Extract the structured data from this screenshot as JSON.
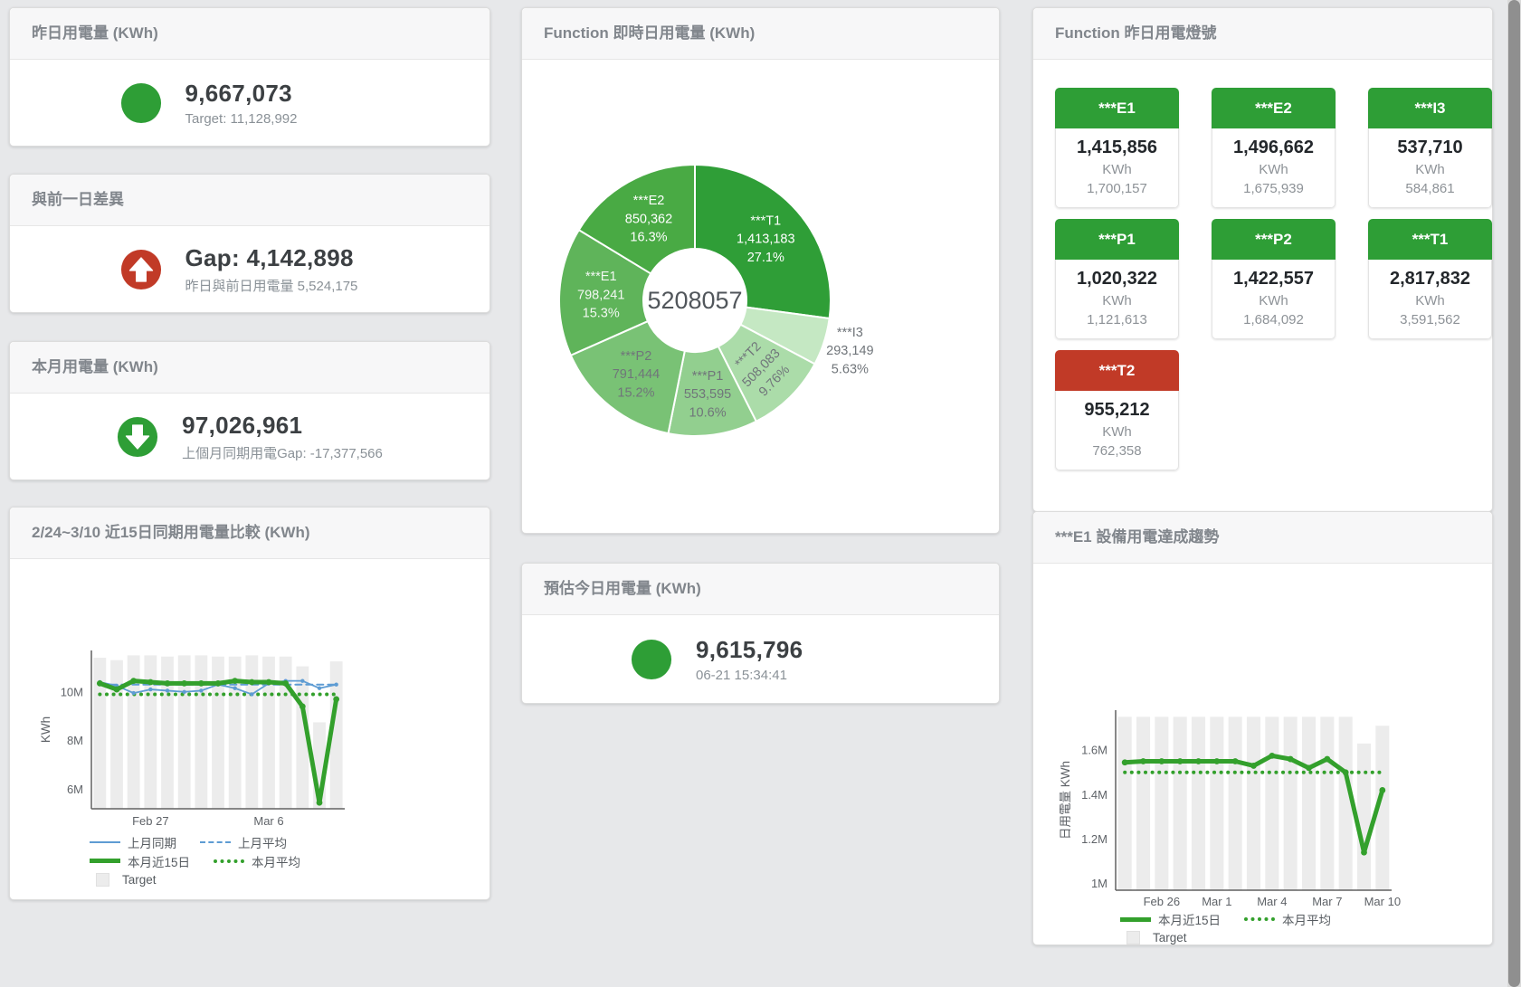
{
  "colors": {
    "green": "#2e9e36",
    "red": "#c13a27",
    "blue_line": "#5e9cd3",
    "green_line": "#33a02c",
    "target_bar": "#ececec"
  },
  "cards": {
    "yesterday": {
      "title": "昨日用電量 (KWh)",
      "value": "9,667,073",
      "subtitle": "Target: 11,128,992",
      "indicator": {
        "shape": "circle",
        "color": "#2e9e36"
      }
    },
    "prev_day_gap": {
      "title": "與前一日差異",
      "value": "Gap: 4,142,898",
      "subtitle": "昨日與前日用電量 5,524,175",
      "indicator": {
        "shape": "arrow-up",
        "color": "#c13a27"
      }
    },
    "month": {
      "title": "本月用電量 (KWh)",
      "value": "97,026,961",
      "subtitle": "上個月同期用電Gap: -17,377,566",
      "indicator": {
        "shape": "arrow-down",
        "color": "#2e9e36"
      }
    },
    "estimate": {
      "title": "預估今日用電量 (KWh)",
      "value": "9,615,796",
      "subtitle": "06-21 15:34:41",
      "indicator": {
        "shape": "circle",
        "color": "#2e9e36"
      }
    },
    "lights": {
      "title": "Function 昨日用電燈號",
      "tiles": [
        {
          "label": "***E1",
          "value": "1,415,856",
          "unit": "KWh",
          "target": "1,700,157",
          "color": "#2e9e36"
        },
        {
          "label": "***E2",
          "value": "1,496,662",
          "unit": "KWh",
          "target": "1,675,939",
          "color": "#2e9e36"
        },
        {
          "label": "***I3",
          "value": "537,710",
          "unit": "KWh",
          "target": "584,861",
          "color": "#2e9e36"
        },
        {
          "label": "***P1",
          "value": "1,020,322",
          "unit": "KWh",
          "target": "1,121,613",
          "color": "#2e9e36"
        },
        {
          "label": "***P2",
          "value": "1,422,557",
          "unit": "KWh",
          "target": "1,684,092",
          "color": "#2e9e36"
        },
        {
          "label": "***T1",
          "value": "2,817,832",
          "unit": "KWh",
          "target": "3,591,562",
          "color": "#2e9e36"
        },
        {
          "label": "***T2",
          "value": "955,212",
          "unit": "KWh",
          "target": "762,358",
          "color": "#c13a27"
        }
      ]
    }
  },
  "chart_data": [
    {
      "id": "donut-realtime",
      "type": "donut",
      "title": "Function 即時日用電量 (KWh)",
      "center_label": "5208057",
      "slices": [
        {
          "name": "***T1",
          "value": 1413183,
          "value_label": "1,413,183",
          "pct": 27.1,
          "pct_label": "27.1%",
          "color": "#2f9e37",
          "text_color": "#ffffff"
        },
        {
          "name": "***I3",
          "value": 293149,
          "value_label": "293,149",
          "pct": 5.63,
          "pct_label": "5.63%",
          "color": "#c5e8c3",
          "text_color": "#70757a",
          "label_outside": true
        },
        {
          "name": "***T2",
          "value": 508083,
          "value_label": "508,083",
          "pct": 9.76,
          "pct_label": "9.76%",
          "color": "#abdca9",
          "text_color": "#70757a",
          "rotate_label": true
        },
        {
          "name": "***P1",
          "value": 553595,
          "value_label": "553,595",
          "pct": 10.6,
          "pct_label": "10.6%",
          "color": "#92cf8f",
          "text_color": "#70757a"
        },
        {
          "name": "***P2",
          "value": 791444,
          "value_label": "791,444",
          "pct": 15.2,
          "pct_label": "15.2%",
          "color": "#79c275",
          "text_color": "#70757a"
        },
        {
          "name": "***E1",
          "value": 798241,
          "value_label": "798,241",
          "pct": 15.3,
          "pct_label": "15.3%",
          "color": "#5fb45a",
          "text_color": "#f2f8f2"
        },
        {
          "name": "***E2",
          "value": 850362,
          "value_label": "850,362",
          "pct": 16.3,
          "pct_label": "16.3%",
          "color": "#49aa44",
          "text_color": "#ffffff"
        }
      ]
    },
    {
      "id": "compare-15day",
      "type": "bar-line",
      "title": "2/24~3/10 近15日同期用電量比較 (KWh)",
      "ylabel": "KWh",
      "y_unit": "M",
      "ylim": [
        5.2,
        11.7
      ],
      "y_ticks": [
        {
          "v": 6,
          "label": "6M"
        },
        {
          "v": 8,
          "label": "8M"
        },
        {
          "v": 10,
          "label": "10M"
        }
      ],
      "categories": [
        "2/24",
        "2/25",
        "2/26",
        "2/27",
        "2/28",
        "3/1",
        "3/2",
        "3/3",
        "3/4",
        "3/5",
        "3/6",
        "3/7",
        "3/8",
        "3/9",
        "3/10"
      ],
      "x_ticks": [
        {
          "i": 3,
          "label": "Feb 27"
        },
        {
          "i": 10,
          "label": "Mar 6"
        }
      ],
      "bars": {
        "name": "Target",
        "color": "#ececec",
        "values": [
          11.4,
          11.3,
          11.5,
          11.5,
          11.45,
          11.5,
          11.5,
          11.45,
          11.45,
          11.5,
          11.45,
          11.45,
          11.05,
          8.75,
          11.25
        ]
      },
      "series": [
        {
          "name": "上月平均",
          "color": "#5e9cd3",
          "style": "dashed",
          "width": 2,
          "const": 10.3
        },
        {
          "name": "本月平均",
          "color": "#33a02c",
          "style": "dotted",
          "width": 4,
          "const": 9.9
        },
        {
          "name": "上月同期",
          "color": "#5e9cd3",
          "style": "solid",
          "width": 1.8,
          "values": [
            10.4,
            10.25,
            9.95,
            10.1,
            10.05,
            10.0,
            10.05,
            10.3,
            10.15,
            9.9,
            10.35,
            10.45,
            10.45,
            10.15,
            10.3
          ]
        },
        {
          "name": "本月近15日",
          "color": "#33a02c",
          "style": "solid",
          "width": 5,
          "values": [
            10.35,
            10.1,
            10.45,
            10.4,
            10.35,
            10.35,
            10.35,
            10.35,
            10.45,
            10.4,
            10.4,
            10.35,
            9.4,
            5.45,
            9.7
          ]
        }
      ],
      "legend_rows": [
        [
          "上月同期",
          "上月平均"
        ],
        [
          "本月近15日",
          "本月平均"
        ],
        [
          "Target"
        ]
      ]
    },
    {
      "id": "e1-trend",
      "type": "bar-line",
      "title": "***E1 設備用電達成趨勢",
      "ylabel": "日用電量 KWh",
      "y_unit": "M",
      "ylim": [
        0.97,
        1.78
      ],
      "y_ticks": [
        {
          "v": 1,
          "label": "1M"
        },
        {
          "v": 1.2,
          "label": "1.2M"
        },
        {
          "v": 1.4,
          "label": "1.4M"
        },
        {
          "v": 1.6,
          "label": "1.6M"
        }
      ],
      "categories": [
        "2/24",
        "2/25",
        "2/26",
        "2/27",
        "2/28",
        "3/1",
        "3/2",
        "3/3",
        "3/4",
        "3/5",
        "3/6",
        "3/7",
        "3/8",
        "3/9",
        "3/10"
      ],
      "x_ticks": [
        {
          "i": 2,
          "label": "Feb 26"
        },
        {
          "i": 5,
          "label": "Mar 1"
        },
        {
          "i": 8,
          "label": "Mar 4"
        },
        {
          "i": 11,
          "label": "Mar 7"
        },
        {
          "i": 14,
          "label": "Mar 10"
        }
      ],
      "bars": {
        "name": "Target",
        "color": "#ececec",
        "values": [
          1.75,
          1.75,
          1.75,
          1.75,
          1.75,
          1.75,
          1.75,
          1.75,
          1.75,
          1.75,
          1.75,
          1.75,
          1.75,
          1.63,
          1.71
        ]
      },
      "series": [
        {
          "name": "本月平均",
          "color": "#33a02c",
          "style": "dotted",
          "width": 4,
          "const": 1.5
        },
        {
          "name": "本月近15日",
          "color": "#33a02c",
          "style": "solid",
          "width": 5,
          "values": [
            1.545,
            1.55,
            1.55,
            1.55,
            1.55,
            1.55,
            1.55,
            1.53,
            1.575,
            1.56,
            1.52,
            1.56,
            1.5,
            1.14,
            1.42
          ]
        }
      ],
      "legend_rows": [
        [
          "本月近15日",
          "本月平均"
        ],
        [
          "Target"
        ]
      ]
    }
  ]
}
